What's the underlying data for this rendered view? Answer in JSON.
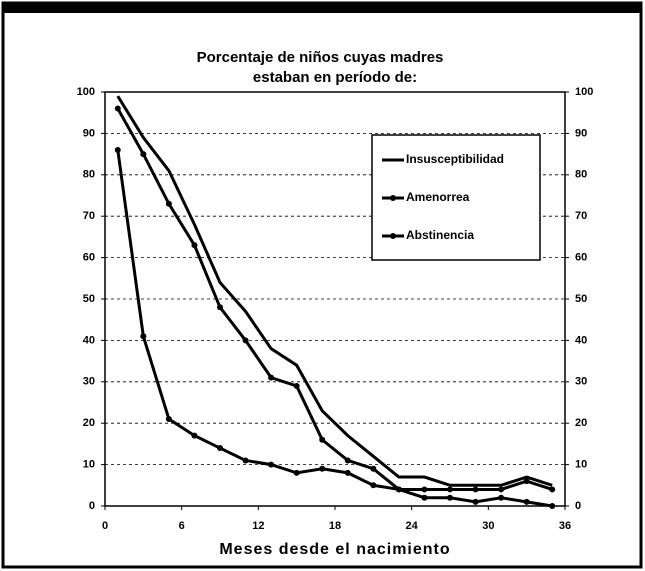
{
  "chart_data": {
    "type": "line",
    "title_lines": [
      "Porcentaje de niños cuyas madres",
      "estaban en período de:"
    ],
    "x_label": "Meses desde el nacimiento",
    "x": [
      1,
      3,
      5,
      7,
      9,
      11,
      13,
      15,
      17,
      19,
      21,
      23,
      25,
      27,
      29,
      31,
      33,
      35
    ],
    "series": [
      {
        "name": "Insusceptibilidad",
        "color": "#000000",
        "marker": false,
        "values": [
          99,
          89,
          81,
          68,
          54,
          47,
          38,
          34,
          23,
          17,
          12,
          7,
          7,
          5,
          5,
          5,
          7,
          5
        ]
      },
      {
        "name": "Amenorrea",
        "color": "#000000",
        "marker": true,
        "values": [
          96,
          85,
          73,
          63,
          48,
          40,
          31,
          29,
          16,
          11,
          9,
          4,
          4,
          4,
          4,
          4,
          6,
          4
        ]
      },
      {
        "name": "Abstinencia",
        "color": "#000000",
        "marker": true,
        "values": [
          86,
          41,
          21,
          17,
          14,
          11,
          10,
          8,
          9,
          8,
          5,
          4,
          2,
          2,
          1,
          2,
          1,
          0
        ]
      }
    ],
    "xlim": [
      0,
      36
    ],
    "xticks": [
      0,
      6,
      12,
      18,
      24,
      30,
      36
    ],
    "ylim": [
      0,
      100
    ],
    "yticks": [
      0,
      10,
      20,
      30,
      40,
      50,
      60,
      70,
      80,
      90,
      100
    ],
    "y2lim": [
      0,
      100
    ],
    "y2ticks": [
      0,
      10,
      20,
      30,
      40,
      50,
      60,
      70,
      80,
      90,
      100
    ],
    "grid": true
  }
}
